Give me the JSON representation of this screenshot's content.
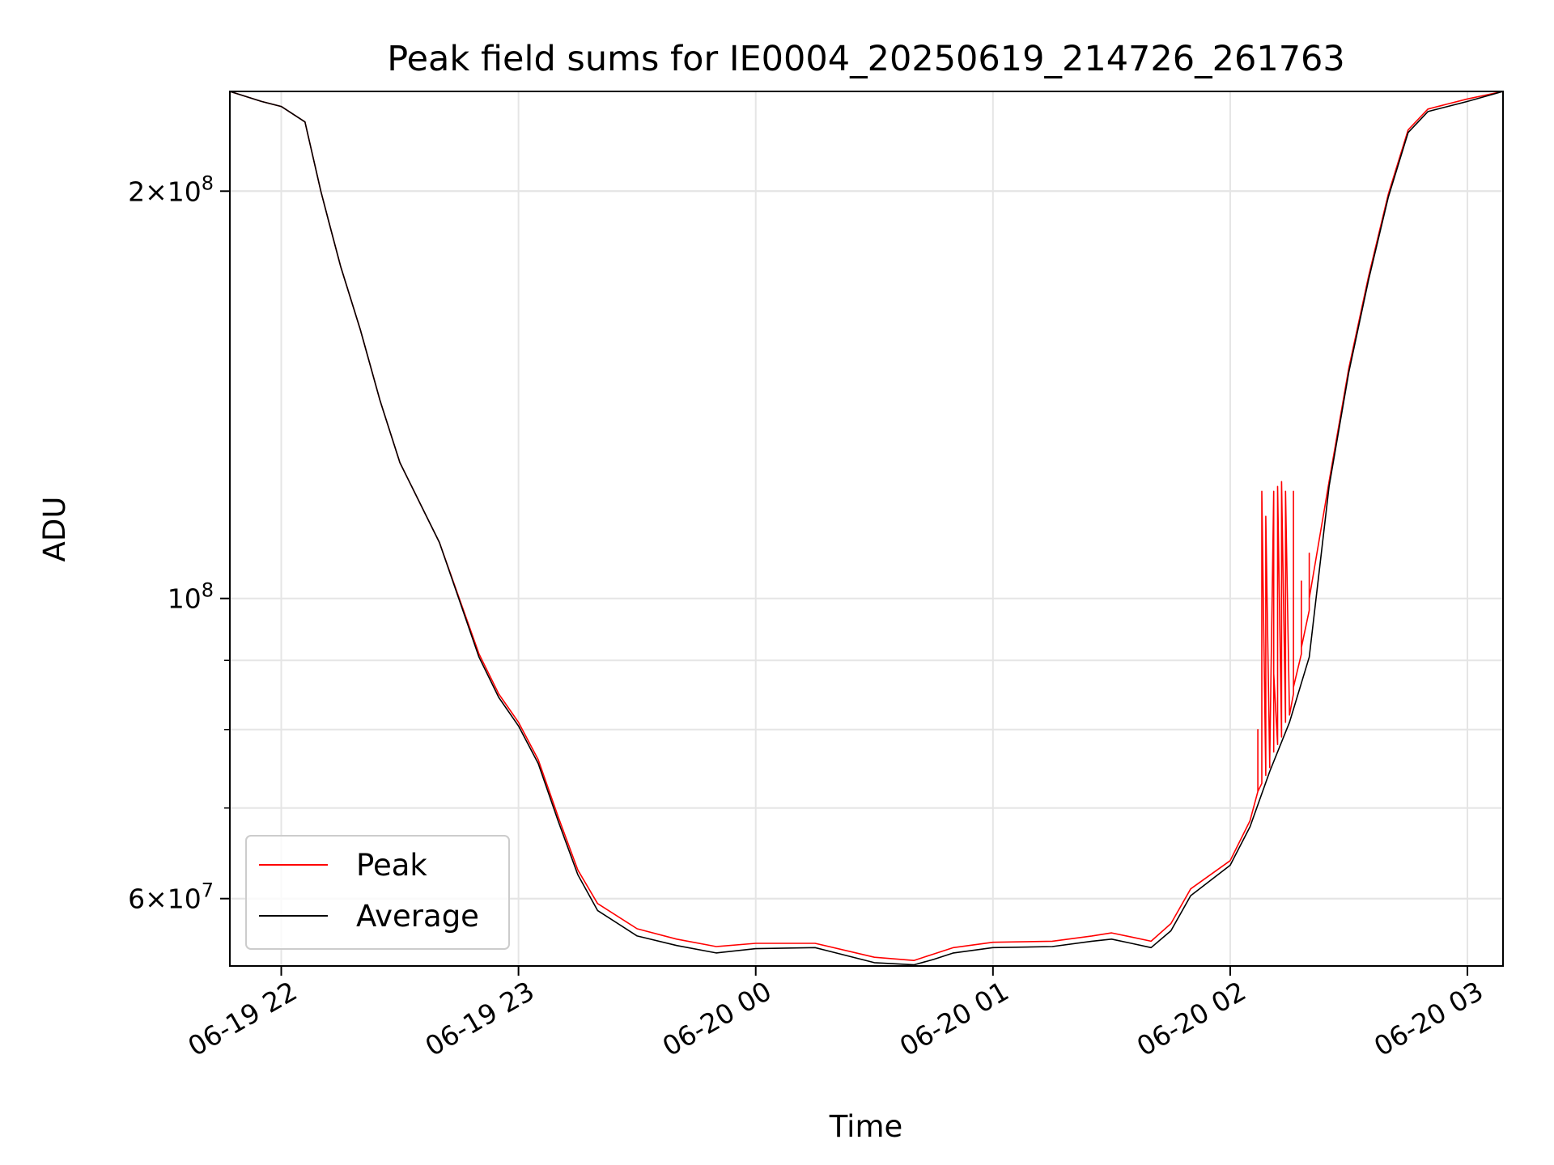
{
  "chart_data": {
    "type": "line",
    "title": "Peak field sums for IE0004_20250619_214726_261763",
    "xlabel": "Time",
    "ylabel": "ADU",
    "xscale": "time",
    "yscale": "log",
    "xlim": [
      "2025-06-19 21:47",
      "2025-06-20 03:09"
    ],
    "ylim": [
      53500000,
      237000000
    ],
    "grid": true,
    "legend_position": "lower-left",
    "x_ticks": [
      {
        "value": "2025-06-19 22:00",
        "label": "06-19 22"
      },
      {
        "value": "2025-06-19 23:00",
        "label": "06-19 23"
      },
      {
        "value": "2025-06-20 00:00",
        "label": "06-20 00"
      },
      {
        "value": "2025-06-20 01:00",
        "label": "06-20 01"
      },
      {
        "value": "2025-06-20 02:00",
        "label": "06-20 02"
      },
      {
        "value": "2025-06-20 03:00",
        "label": "06-20 03"
      }
    ],
    "y_major_ticks": [
      {
        "value": 100000000,
        "base": "10",
        "exp": "8"
      },
      {
        "value": 200000000,
        "mant": "2",
        "base": "10",
        "exp": "8"
      },
      {
        "value": 60000000,
        "mant": "6",
        "base": "10",
        "exp": "7"
      }
    ],
    "y_minor_ticks": [
      60000000,
      70000000,
      80000000,
      90000000,
      200000000
    ],
    "series": [
      {
        "name": "Peak",
        "color": "#ff0000",
        "x": [
          "2025-06-19 21:47",
          "2025-06-19 21:55",
          "2025-06-19 22:00",
          "2025-06-19 22:06",
          "2025-06-19 22:10",
          "2025-06-19 22:12",
          "2025-06-19 22:15",
          "2025-06-19 22:20",
          "2025-06-19 22:25",
          "2025-06-19 22:30",
          "2025-06-19 22:40",
          "2025-06-19 22:50",
          "2025-06-19 22:55",
          "2025-06-19 23:00",
          "2025-06-19 23:05",
          "2025-06-19 23:10",
          "2025-06-19 23:15",
          "2025-06-19 23:20",
          "2025-06-19 23:30",
          "2025-06-19 23:40",
          "2025-06-19 23:50",
          "2025-06-20 00:00",
          "2025-06-20 00:15",
          "2025-06-20 00:30",
          "2025-06-20 00:40",
          "2025-06-20 00:45",
          "2025-06-20 00:50",
          "2025-06-20 01:00",
          "2025-06-20 01:15",
          "2025-06-20 01:25",
          "2025-06-20 01:30",
          "2025-06-20 01:35",
          "2025-06-20 01:40",
          "2025-06-20 01:45",
          "2025-06-20 01:50",
          "2025-06-20 02:00",
          "2025-06-20 02:05",
          "2025-06-20 02:07",
          "2025-06-20 02:07",
          "2025-06-20 02:07",
          "2025-06-20 02:08",
          "2025-06-20 02:08",
          "2025-06-20 02:09",
          "2025-06-20 02:09",
          "2025-06-20 02:10",
          "2025-06-20 02:10",
          "2025-06-20 02:11",
          "2025-06-20 02:11",
          "2025-06-20 02:11",
          "2025-06-20 02:12",
          "2025-06-20 02:12",
          "2025-06-20 02:13",
          "2025-06-20 02:13",
          "2025-06-20 02:14",
          "2025-06-20 02:14",
          "2025-06-20 02:15",
          "2025-06-20 02:16",
          "2025-06-20 02:16",
          "2025-06-20 02:16",
          "2025-06-20 02:18",
          "2025-06-20 02:18",
          "2025-06-20 02:18",
          "2025-06-20 02:20",
          "2025-06-20 02:20",
          "2025-06-20 02:20",
          "2025-06-20 02:25",
          "2025-06-20 02:30",
          "2025-06-20 02:35",
          "2025-06-20 02:40",
          "2025-06-20 02:45",
          "2025-06-20 02:50",
          "2025-06-20 02:55",
          "2025-06-20 03:00",
          "2025-06-20 03:09"
        ],
        "y": [
          237000000,
          233000000,
          231000000,
          225000000,
          200000000,
          190000000,
          176000000,
          158000000,
          140000000,
          126000000,
          110000000,
          91000000,
          85000000,
          81000000,
          76000000,
          69000000,
          63000000,
          59500000,
          57000000,
          56000000,
          55300000,
          55600000,
          55600000,
          54300000,
          54000000,
          54600000,
          55200000,
          55700000,
          55800000,
          56300000,
          56600000,
          56200000,
          55800000,
          57500000,
          61000000,
          64000000,
          68500000,
          72000000,
          80000000,
          72000000,
          73000000,
          120000000,
          74000000,
          115000000,
          75000000,
          76000000,
          120000000,
          77000000,
          88000000,
          78000000,
          121000000,
          79000000,
          122000000,
          81000000,
          120000000,
          82000000,
          85000000,
          120000000,
          86000000,
          91000000,
          103000000,
          92000000,
          98000000,
          108000000,
          100000000,
          122000000,
          148000000,
          173000000,
          199000000,
          222000000,
          230000000,
          232000000,
          234000000,
          237000000
        ]
      },
      {
        "name": "Average",
        "color": "#000000",
        "x": [
          "2025-06-19 21:47",
          "2025-06-19 21:55",
          "2025-06-19 22:00",
          "2025-06-19 22:06",
          "2025-06-19 22:10",
          "2025-06-19 22:12",
          "2025-06-19 22:15",
          "2025-06-19 22:20",
          "2025-06-19 22:25",
          "2025-06-19 22:30",
          "2025-06-19 22:40",
          "2025-06-19 22:50",
          "2025-06-19 22:55",
          "2025-06-19 23:00",
          "2025-06-19 23:05",
          "2025-06-19 23:10",
          "2025-06-19 23:15",
          "2025-06-19 23:20",
          "2025-06-19 23:30",
          "2025-06-19 23:40",
          "2025-06-19 23:50",
          "2025-06-20 00:00",
          "2025-06-20 00:15",
          "2025-06-20 00:30",
          "2025-06-20 00:40",
          "2025-06-20 00:45",
          "2025-06-20 00:50",
          "2025-06-20 01:00",
          "2025-06-20 01:15",
          "2025-06-20 01:25",
          "2025-06-20 01:30",
          "2025-06-20 01:35",
          "2025-06-20 01:40",
          "2025-06-20 01:45",
          "2025-06-20 01:50",
          "2025-06-20 02:00",
          "2025-06-20 02:05",
          "2025-06-20 02:10",
          "2025-06-20 02:15",
          "2025-06-20 02:20",
          "2025-06-20 02:25",
          "2025-06-20 02:30",
          "2025-06-20 02:35",
          "2025-06-20 02:40",
          "2025-06-20 02:45",
          "2025-06-20 02:50",
          "2025-06-20 02:55",
          "2025-06-20 03:00",
          "2025-06-20 03:09"
        ],
        "y": [
          237000000,
          233000000,
          231000000,
          225000000,
          200000000,
          190000000,
          176000000,
          158000000,
          140000000,
          126000000,
          110000000,
          90500000,
          84500000,
          80500000,
          75500000,
          68500000,
          62500000,
          58800000,
          56300000,
          55400000,
          54700000,
          55100000,
          55200000,
          53800000,
          53600000,
          54100000,
          54700000,
          55200000,
          55300000,
          55800000,
          56000000,
          55600000,
          55200000,
          56800000,
          60300000,
          63500000,
          67800000,
          74500000,
          81000000,
          90500000,
          121000000,
          147000000,
          172000000,
          198000000,
          221000000,
          229000000,
          231000000,
          233000000,
          237000000
        ]
      }
    ]
  }
}
